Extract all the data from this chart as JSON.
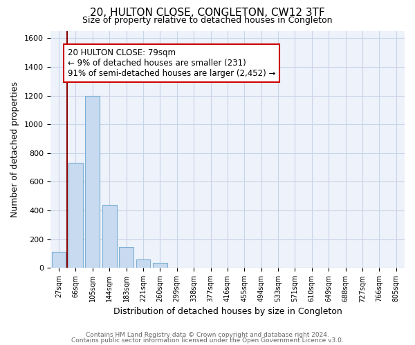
{
  "title": "20, HULTON CLOSE, CONGLETON, CW12 3TF",
  "subtitle": "Size of property relative to detached houses in Congleton",
  "xlabel": "Distribution of detached houses by size in Congleton",
  "ylabel": "Number of detached properties",
  "bar_labels": [
    "27sqm",
    "66sqm",
    "105sqm",
    "144sqm",
    "183sqm",
    "221sqm",
    "260sqm",
    "299sqm",
    "338sqm",
    "377sqm",
    "416sqm",
    "455sqm",
    "494sqm",
    "533sqm",
    "571sqm",
    "610sqm",
    "649sqm",
    "688sqm",
    "727sqm",
    "766sqm",
    "805sqm"
  ],
  "bar_values": [
    110,
    730,
    1200,
    440,
    145,
    60,
    35,
    0,
    0,
    0,
    0,
    0,
    0,
    0,
    0,
    0,
    0,
    0,
    0,
    0,
    0
  ],
  "bar_color": "#c8daf0",
  "bar_edge_color": "#7bafd4",
  "ylim": [
    0,
    1650
  ],
  "yticks": [
    0,
    200,
    400,
    600,
    800,
    1000,
    1200,
    1400,
    1600
  ],
  "marker_bar_index": 1,
  "marker_color": "#8b0000",
  "annotation_title": "20 HULTON CLOSE: 79sqm",
  "annotation_line1": "← 9% of detached houses are smaller (231)",
  "annotation_line2": "91% of semi-detached houses are larger (2,452) →",
  "annotation_box_color": "#ffffff",
  "annotation_box_edge": "#cc0000",
  "grid_color": "#c8d4e8",
  "bg_color": "#eef2fa",
  "footer_line1": "Contains HM Land Registry data © Crown copyright and database right 2024.",
  "footer_line2": "Contains public sector information licensed under the Open Government Licence v3.0."
}
